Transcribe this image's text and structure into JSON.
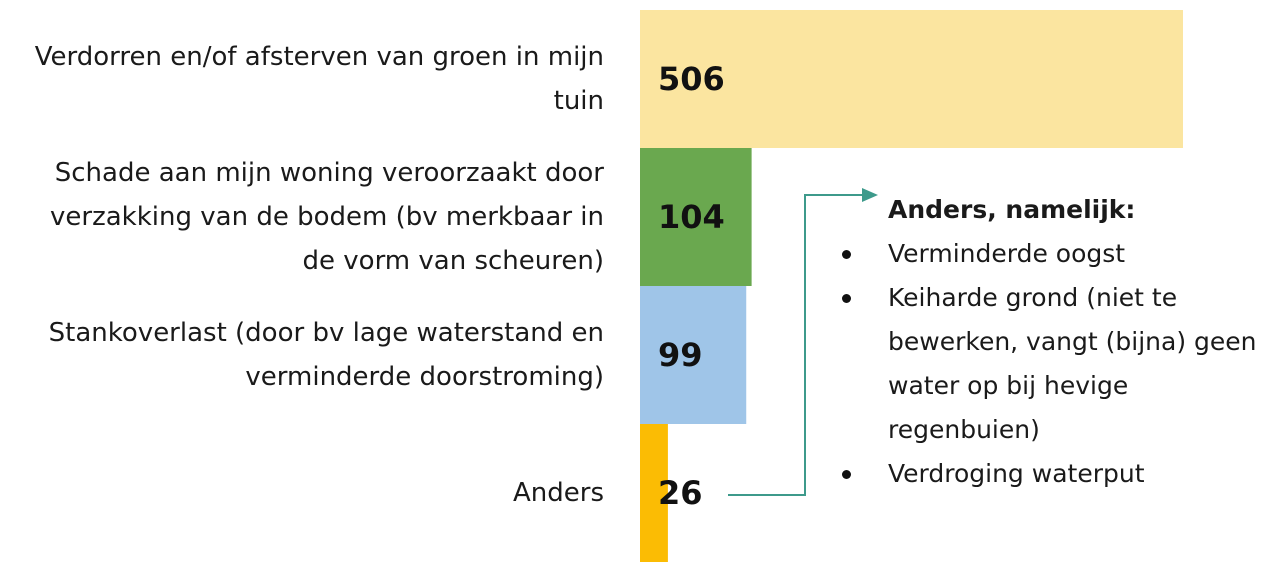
{
  "chart_data": {
    "type": "barh",
    "categories": [
      "Verdorren en/of afsterven van groen in mijn tuin",
      "Schade aan mijn woning veroorzaakt door verzakking van de bodem (bv merkbaar in de vorm van scheuren)",
      "Stankoverlast (door bv lage waterstand en verminderde doorstroming)",
      "Anders"
    ],
    "values": [
      506,
      104,
      99,
      26
    ],
    "colors": [
      "#fbe5a0",
      "#6aa84f",
      "#9fc5e8",
      "#fbbc04"
    ],
    "annotation": {
      "title": "Anders, namelijk:",
      "items": [
        "Verminderde oogst",
        "Keiharde grond (niet te bewerken, vangt (bijna) geen water op bij hevige regenbuien)",
        "Verdroging waterput"
      ]
    }
  }
}
